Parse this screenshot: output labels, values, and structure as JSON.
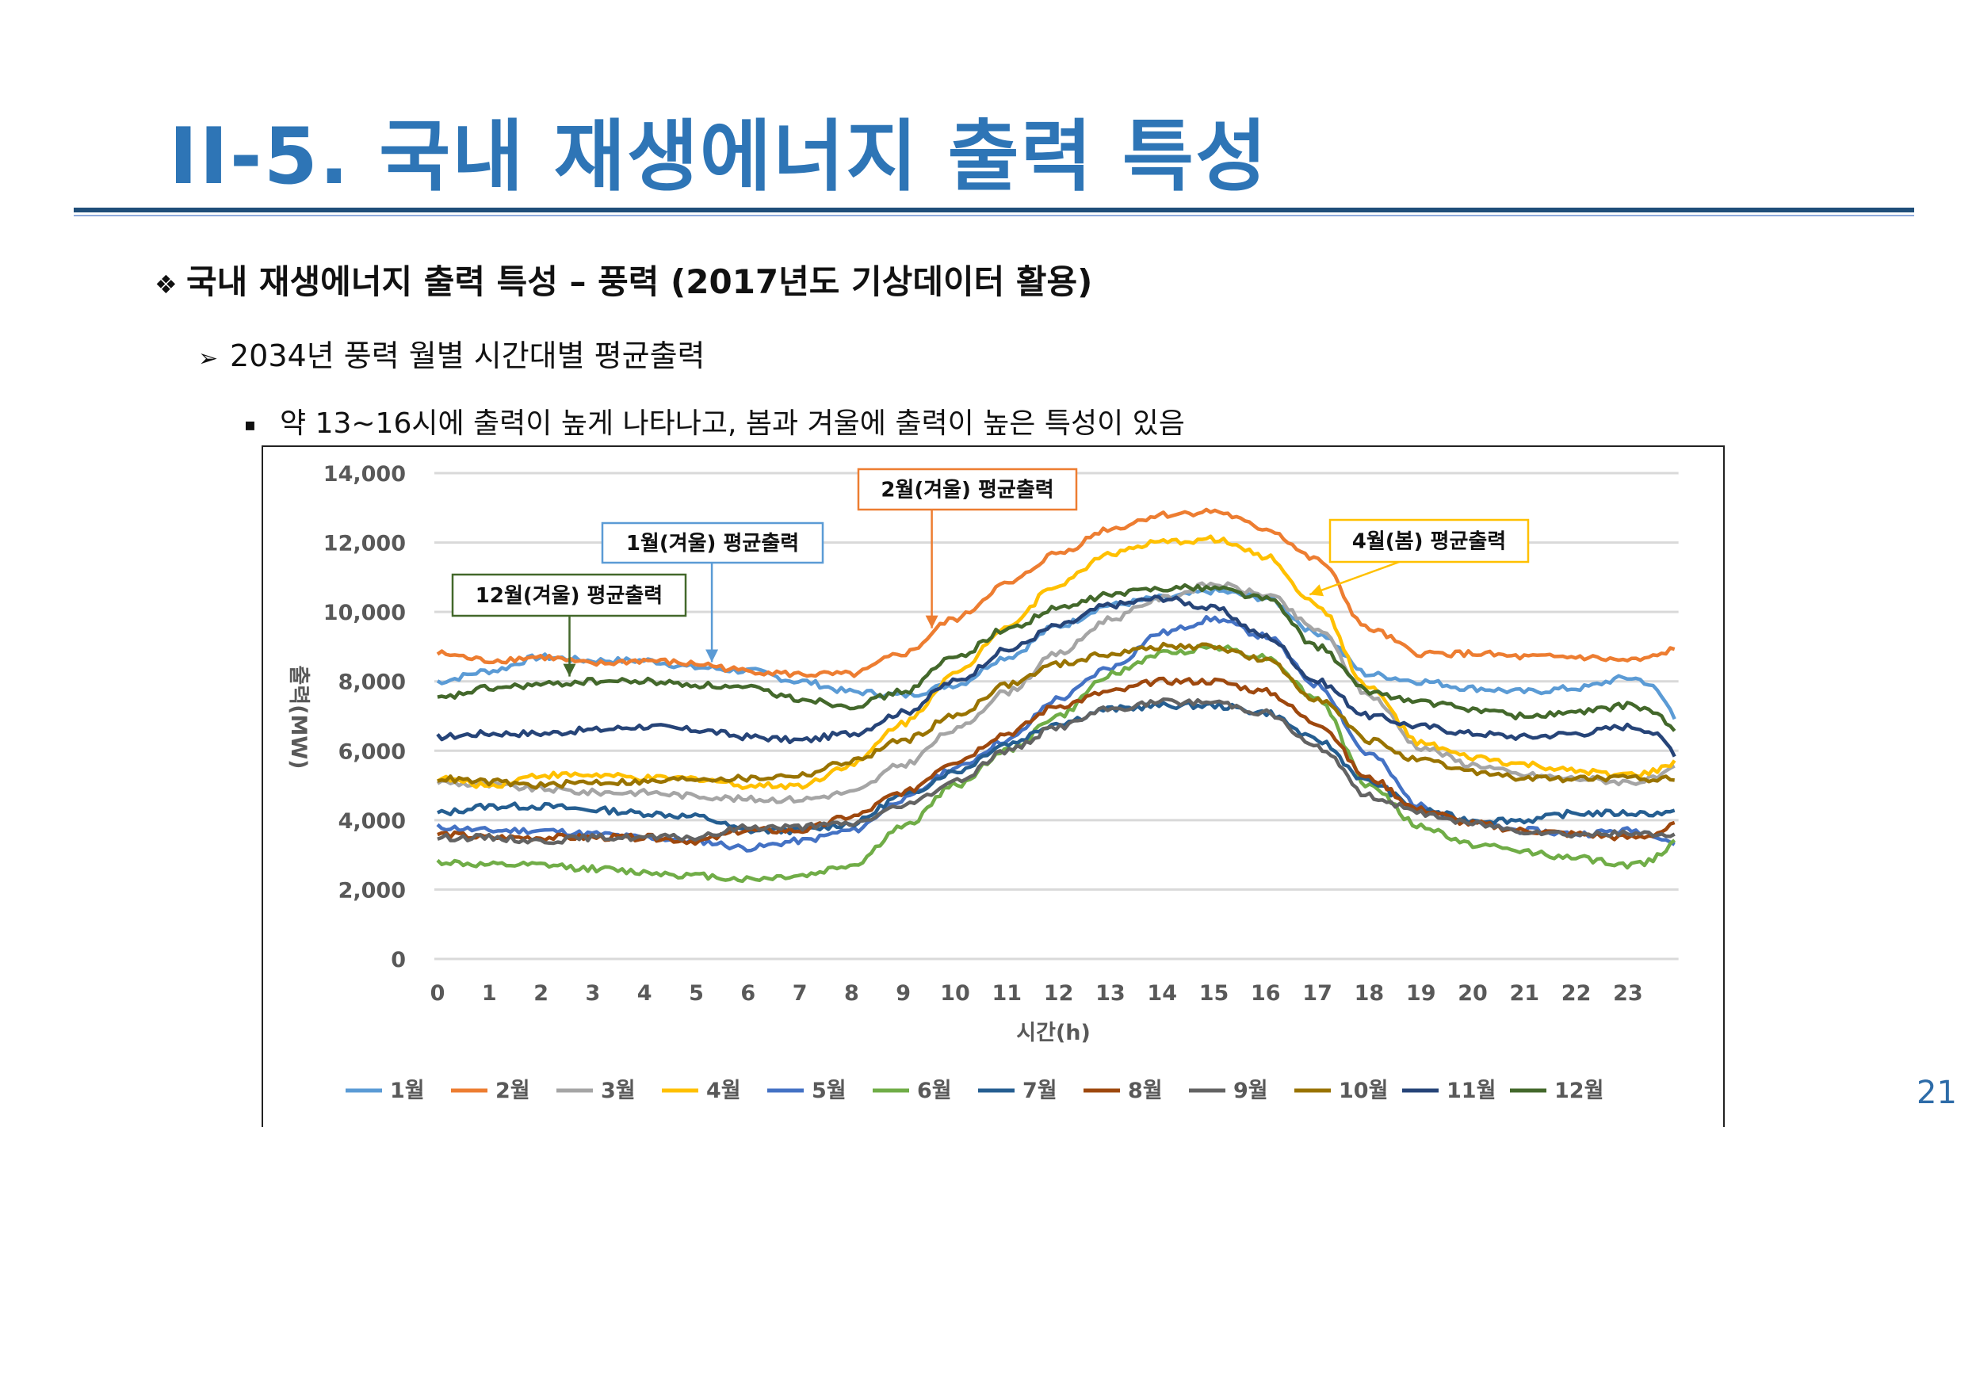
{
  "slide": {
    "title": "II-5.  국내 재생에너지 출력 특성",
    "heading": "국내 재생에너지 출력 특성 – 풍력 (2017년도 기상데이터 활용)",
    "heading_bullet": "❖",
    "subheading": "2034년 풍력 월별 시간대별 평균출력",
    "subheading_bullet": "➢",
    "note": "약 13~16시에 출력이 높게 나타나고, 봄과 겨울에 출력이 높은 특성이 있음",
    "note_bullet": "▪",
    "page_number": "21",
    "accent_color": "#2E75B6"
  },
  "chart_data": {
    "type": "line",
    "title": "",
    "xlabel": "시간(h)",
    "ylabel": "출력(MW)",
    "ylim": [
      0,
      14000
    ],
    "yticks": [
      0,
      2000,
      4000,
      6000,
      8000,
      10000,
      12000,
      14000
    ],
    "ytick_labels": [
      "0",
      "2,000",
      "4,000",
      "6,000",
      "8,000",
      "10,000",
      "12,000",
      "14,000"
    ],
    "x": [
      0,
      1,
      2,
      3,
      4,
      5,
      6,
      7,
      8,
      9,
      10,
      11,
      12,
      13,
      14,
      15,
      16,
      17,
      18,
      19,
      20,
      21,
      22,
      23
    ],
    "xtick_labels": [
      "0",
      "1",
      "2",
      "3",
      "4",
      "5",
      "6",
      "7",
      "8",
      "9",
      "10",
      "11",
      "12",
      "13",
      "14",
      "15",
      "16",
      "17",
      "18",
      "19",
      "20",
      "21",
      "22",
      "23"
    ],
    "grid": true,
    "legend_position": "bottom",
    "series": [
      {
        "name": "1월",
        "color": "#5B9BD5",
        "values": [
          8000,
          8300,
          8700,
          8600,
          8600,
          8400,
          8300,
          8000,
          7700,
          7600,
          7900,
          8700,
          9600,
          10200,
          10400,
          10600,
          10400,
          9400,
          8200,
          8000,
          7800,
          7700,
          7800,
          8100
        ]
      },
      {
        "name": "2월",
        "color": "#ED7D31",
        "values": [
          8800,
          8600,
          8700,
          8500,
          8600,
          8500,
          8300,
          8200,
          8200,
          8800,
          9800,
          10800,
          11700,
          12400,
          12800,
          12900,
          12400,
          11500,
          9500,
          8800,
          8800,
          8700,
          8700,
          8600
        ]
      },
      {
        "name": "3월",
        "color": "#A5A5A5",
        "values": [
          5100,
          5000,
          4900,
          4800,
          4800,
          4700,
          4600,
          4600,
          4800,
          5600,
          6600,
          7700,
          8800,
          9800,
          10400,
          10800,
          10500,
          9500,
          7600,
          6100,
          5600,
          5300,
          5200,
          5100
        ]
      },
      {
        "name": "4월",
        "color": "#FFC000",
        "values": [
          5200,
          5000,
          5300,
          5300,
          5200,
          5200,
          5000,
          5000,
          5600,
          6800,
          8200,
          9600,
          10800,
          11700,
          12000,
          12100,
          11600,
          10200,
          7800,
          6200,
          5800,
          5600,
          5400,
          5300
        ]
      },
      {
        "name": "5월",
        "color": "#4472C4",
        "values": [
          3800,
          3700,
          3700,
          3600,
          3500,
          3400,
          3200,
          3400,
          3700,
          4600,
          5500,
          6300,
          7500,
          8400,
          9400,
          9800,
          9300,
          7900,
          5900,
          4400,
          3900,
          3700,
          3600,
          3700
        ]
      },
      {
        "name": "6월",
        "color": "#70AD47",
        "values": [
          2800,
          2700,
          2700,
          2600,
          2500,
          2400,
          2300,
          2400,
          2700,
          3800,
          5000,
          6000,
          7000,
          8200,
          8800,
          9000,
          8700,
          7500,
          5000,
          3800,
          3300,
          3100,
          2900,
          2700
        ]
      },
      {
        "name": "7월",
        "color": "#255E91",
        "values": [
          4200,
          4400,
          4400,
          4300,
          4200,
          4100,
          3700,
          3700,
          3900,
          4700,
          5400,
          6200,
          6800,
          7200,
          7300,
          7300,
          7100,
          6300,
          5100,
          4300,
          4000,
          4000,
          4200,
          4200
        ]
      },
      {
        "name": "8월",
        "color": "#9E480E",
        "values": [
          3600,
          3500,
          3500,
          3500,
          3500,
          3400,
          3700,
          3700,
          4100,
          4800,
          5700,
          6500,
          7300,
          7700,
          8000,
          8000,
          7700,
          6800,
          5200,
          4300,
          3900,
          3700,
          3600,
          3500
        ]
      },
      {
        "name": "9월",
        "color": "#636363",
        "values": [
          3500,
          3500,
          3400,
          3500,
          3500,
          3500,
          3800,
          3800,
          3900,
          4400,
          5100,
          6000,
          6700,
          7200,
          7400,
          7400,
          7100,
          6100,
          4700,
          4200,
          3900,
          3700,
          3600,
          3600
        ]
      },
      {
        "name": "10월",
        "color": "#997300",
        "values": [
          5200,
          5100,
          5000,
          5100,
          5100,
          5200,
          5200,
          5300,
          5700,
          6300,
          7000,
          7900,
          8500,
          8800,
          9000,
          9000,
          8600,
          7500,
          6300,
          5700,
          5400,
          5200,
          5200,
          5200
        ]
      },
      {
        "name": "11월",
        "color": "#264478",
        "values": [
          6400,
          6500,
          6500,
          6600,
          6700,
          6600,
          6400,
          6300,
          6500,
          7100,
          8000,
          8900,
          9600,
          10200,
          10400,
          10100,
          9300,
          8000,
          7000,
          6700,
          6500,
          6400,
          6500,
          6700
        ]
      },
      {
        "name": "12월",
        "color": "#43682B",
        "values": [
          7500,
          7800,
          7900,
          8000,
          8000,
          7900,
          7800,
          7500,
          7300,
          7700,
          8700,
          9500,
          10100,
          10500,
          10700,
          10700,
          10400,
          9000,
          7700,
          7400,
          7200,
          7000,
          7100,
          7300
        ]
      }
    ],
    "annotations": [
      {
        "text": "12월(겨울) 평균출력",
        "series": "12월",
        "color": "#43682B",
        "target_x": 2.5
      },
      {
        "text": "1월(겨울) 평균출력",
        "series": "1월",
        "color": "#5B9BD5",
        "target_x": 5.3
      },
      {
        "text": "2월(겨울) 평균출력",
        "series": "2월",
        "color": "#ED7D31",
        "target_x": 9.5
      },
      {
        "text": "4월(봄) 평균출력",
        "series": "4월",
        "color": "#FFC000",
        "target_x": 16.8
      }
    ]
  }
}
